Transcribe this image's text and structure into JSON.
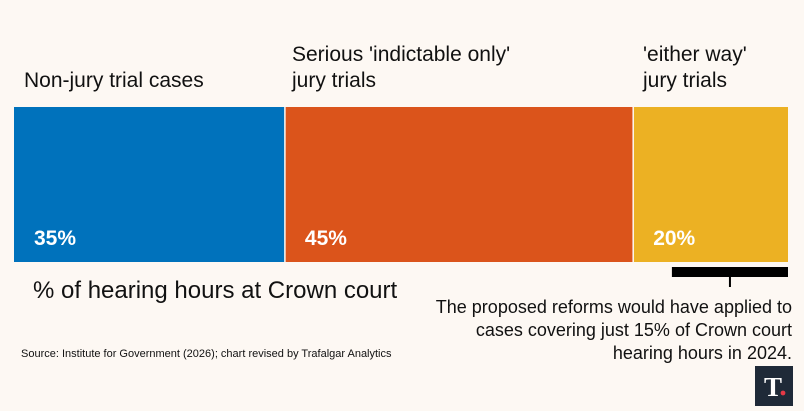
{
  "chart_data": {
    "type": "bar",
    "orientation": "horizontal-stacked",
    "categories": [
      "Non-jury trial cases",
      "Serious 'indictable only'\njury trials",
      "'either way'\njury trials"
    ],
    "values": [
      35,
      45,
      20
    ],
    "value_labels": [
      "35%",
      "45%",
      "20%"
    ],
    "colors": [
      "#0072bc",
      "#db541b",
      "#ecb123"
    ],
    "xlabel": "% of hearing hours at Crown court",
    "annotation": "The proposed reforms would have applied to cases covering just 15% of Crown court hearing hours in 2024.",
    "annotation_range": [
      85,
      100
    ],
    "source": "Source: Institute for Government (2026); chart revised by Trafalgar Analytics"
  },
  "logo": {
    "name": "publisher-logo",
    "letter": "T"
  }
}
